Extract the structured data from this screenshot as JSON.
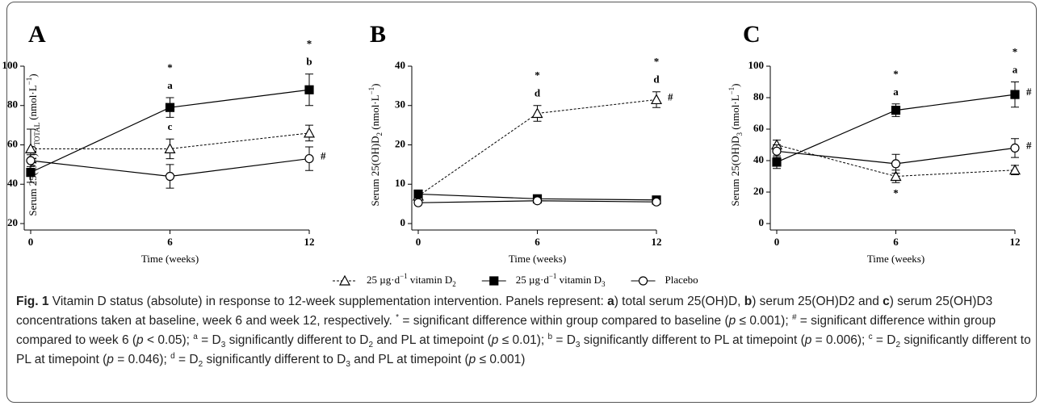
{
  "chart_data": [
    {
      "type": "line",
      "title": "A",
      "xlabel": "Time (weeks)",
      "ylabel": [
        {
          "t": "Serum 25(OH)D"
        },
        {
          "t": "TOTAL",
          "s": "sub"
        },
        {
          "t": " (nmol·L"
        },
        {
          "t": "−1",
          "s": "sup"
        },
        {
          "t": ")"
        }
      ],
      "x": [
        0,
        6,
        12
      ],
      "xlim": [
        0,
        12
      ],
      "xticks": [
        0,
        6,
        12
      ],
      "ylim": [
        20,
        100
      ],
      "yticks": [
        20,
        40,
        60,
        80,
        100
      ],
      "series": [
        {
          "values": [
            58,
            58,
            66
          ],
          "errors": [
            10,
            5,
            4
          ]
        },
        {
          "values": [
            46,
            79,
            88
          ],
          "errors": [
            5,
            5,
            8
          ]
        },
        {
          "values": [
            52,
            44,
            53
          ],
          "errors": [
            3,
            6,
            6
          ]
        }
      ],
      "annotations": [
        {
          "x": 6,
          "series": 1,
          "place": "above",
          "text": [
            "*",
            "a"
          ]
        },
        {
          "x": 6,
          "series": 0,
          "place": "above",
          "text": [
            "c"
          ]
        },
        {
          "x": 12,
          "series": 1,
          "place": "above",
          "text": [
            "*",
            "b"
          ]
        },
        {
          "x": 12,
          "series": 2,
          "place": "right",
          "text": [
            "#"
          ]
        }
      ]
    },
    {
      "type": "line",
      "title": "B",
      "xlabel": "Time (weeks)",
      "ylabel": [
        {
          "t": "Serum 25(OH)D"
        },
        {
          "t": "2",
          "s": "sub"
        },
        {
          "t": " (nmol·L"
        },
        {
          "t": "−1",
          "s": "sup"
        },
        {
          "t": ")"
        }
      ],
      "x": [
        0,
        6,
        12
      ],
      "xlim": [
        0,
        12
      ],
      "xticks": [
        0,
        6,
        12
      ],
      "ylim": [
        0,
        40
      ],
      "yticks": [
        0,
        10,
        20,
        30,
        40
      ],
      "series": [
        {
          "values": [
            7,
            28,
            31.5
          ],
          "errors": [
            1.5,
            2,
            2
          ]
        },
        {
          "values": [
            7.5,
            6.3,
            6
          ],
          "errors": [
            1,
            0.5,
            0.5
          ]
        },
        {
          "values": [
            5.3,
            5.8,
            5.5
          ],
          "errors": [
            0.5,
            0.5,
            0.5
          ]
        }
      ],
      "annotations": [
        {
          "x": 6,
          "series": 0,
          "place": "above",
          "text": [
            "*",
            "d"
          ]
        },
        {
          "x": 12,
          "series": 0,
          "place": "above",
          "text": [
            "*",
            "d"
          ]
        },
        {
          "x": 12,
          "series": 0,
          "place": "right",
          "text": [
            "#"
          ]
        }
      ]
    },
    {
      "type": "line",
      "title": "C",
      "xlabel": "Time (weeks)",
      "ylabel": [
        {
          "t": "Serum 25(OH)D"
        },
        {
          "t": "3",
          "s": "sub"
        },
        {
          "t": " (nmol·L"
        },
        {
          "t": "−1",
          "s": "sup"
        },
        {
          "t": ")"
        }
      ],
      "x": [
        0,
        6,
        12
      ],
      "xlim": [
        0,
        12
      ],
      "xticks": [
        0,
        6,
        12
      ],
      "ylim": [
        0,
        100
      ],
      "yticks": [
        0,
        20,
        40,
        60,
        80,
        100
      ],
      "series": [
        {
          "values": [
            50,
            30,
            34
          ],
          "errors": [
            3,
            4,
            3
          ]
        },
        {
          "values": [
            39,
            72,
            82
          ],
          "errors": [
            4,
            4,
            8
          ]
        },
        {
          "values": [
            46,
            38,
            48
          ],
          "errors": [
            4,
            6,
            6
          ]
        }
      ],
      "annotations": [
        {
          "x": 6,
          "series": 1,
          "place": "above",
          "text": [
            "*",
            "a"
          ]
        },
        {
          "x": 6,
          "series": 0,
          "place": "below",
          "text": [
            "*"
          ]
        },
        {
          "x": 12,
          "series": 1,
          "place": "above",
          "text": [
            "*",
            "a"
          ]
        },
        {
          "x": 12,
          "series": 1,
          "place": "right",
          "text": [
            "#"
          ]
        },
        {
          "x": 12,
          "series": 2,
          "place": "right",
          "text": [
            "#"
          ]
        }
      ]
    }
  ],
  "legend": [
    {
      "marker": "triangle",
      "dashed": true,
      "fill": "#ffffff",
      "color": "#000000",
      "name": [
        {
          "t": "25 µg·d"
        },
        {
          "t": "−1",
          "s": "sup"
        },
        {
          "t": " vitamin D"
        },
        {
          "t": "2",
          "s": "sub"
        }
      ]
    },
    {
      "marker": "square",
      "dashed": false,
      "fill": "#000000",
      "color": "#000000",
      "name": [
        {
          "t": "25 µg·d"
        },
        {
          "t": "−1",
          "s": "sup"
        },
        {
          "t": " vitamin D"
        },
        {
          "t": "3",
          "s": "sub"
        }
      ]
    },
    {
      "marker": "circle",
      "dashed": false,
      "fill": "#ffffff",
      "color": "#000000",
      "name": [
        {
          "t": "Placebo"
        }
      ]
    }
  ],
  "caption": [
    {
      "t": "Fig. 1",
      "s": "b"
    },
    {
      "t": " Vitamin D status (absolute) in response to 12-week supplementation intervention. Panels represent: "
    },
    {
      "t": "a",
      "s": "b"
    },
    {
      "t": ") total serum 25(OH)D, "
    },
    {
      "t": "b",
      "s": "b"
    },
    {
      "t": ") serum 25(OH)D2 and "
    },
    {
      "t": "c",
      "s": "b"
    },
    {
      "t": ") serum 25(OH)D3 concentrations taken at baseline, week 6 and week 12, respectively. "
    },
    {
      "t": "*",
      "s": "sup"
    },
    {
      "t": " = significant difference within group compared to baseline ("
    },
    {
      "t": "p",
      "s": "i"
    },
    {
      "t": " ≤ 0.001); "
    },
    {
      "t": "#",
      "s": "sup"
    },
    {
      "t": " = significant difference within group compared to week 6 ("
    },
    {
      "t": "p",
      "s": "i"
    },
    {
      "t": " < 0.05); "
    },
    {
      "t": "a",
      "s": "sup"
    },
    {
      "t": " = D"
    },
    {
      "t": "3",
      "s": "sub"
    },
    {
      "t": " significantly different to D"
    },
    {
      "t": "2",
      "s": "sub"
    },
    {
      "t": " and PL at timepoint ("
    },
    {
      "t": "p",
      "s": "i"
    },
    {
      "t": " ≤ 0.01); "
    },
    {
      "t": "b",
      "s": "sup"
    },
    {
      "t": " = D"
    },
    {
      "t": "3",
      "s": "sub"
    },
    {
      "t": " significantly different to PL at timepoint ("
    },
    {
      "t": "p",
      "s": "i"
    },
    {
      "t": " = 0.006); "
    },
    {
      "t": "c",
      "s": "sup"
    },
    {
      "t": " = D"
    },
    {
      "t": "2",
      "s": "sub"
    },
    {
      "t": " significantly different to PL at timepoint ("
    },
    {
      "t": "p",
      "s": "i"
    },
    {
      "t": " = 0.046); "
    },
    {
      "t": "d",
      "s": "sup"
    },
    {
      "t": " = D"
    },
    {
      "t": "2",
      "s": "sub"
    },
    {
      "t": " significantly different to D"
    },
    {
      "t": "3",
      "s": "sub"
    },
    {
      "t": " and PL at timepoint ("
    },
    {
      "t": "p",
      "s": "i"
    },
    {
      "t": " ≤ 0.001)"
    }
  ]
}
